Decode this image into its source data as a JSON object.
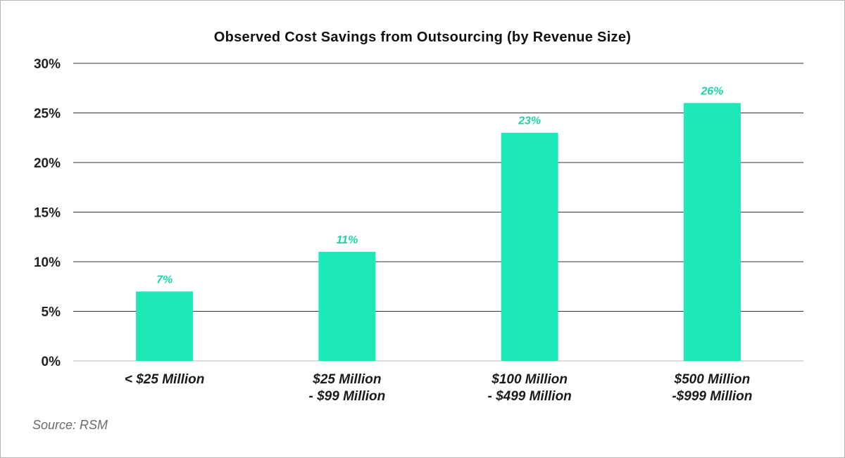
{
  "chart_data": {
    "type": "bar",
    "title": "Observed Cost Savings from Outsourcing (by Revenue Size)",
    "categories": [
      [
        "< $25 Million"
      ],
      [
        "$25 Million",
        "- $99 Million"
      ],
      [
        "$100 Million",
        "- $499 Million"
      ],
      [
        "$500 Million",
        "-$999 Million"
      ]
    ],
    "values": [
      7,
      11,
      23,
      26
    ],
    "data_labels": [
      "7%",
      "11%",
      "23%",
      "26%"
    ],
    "ylim": [
      0,
      30
    ],
    "yticks": [
      0,
      5,
      10,
      15,
      20,
      25,
      30
    ],
    "ytick_labels": [
      "0%",
      "5%",
      "10%",
      "15%",
      "20%",
      "25%",
      "30%"
    ],
    "grid": true,
    "bar_color": "#1de9b6",
    "label_color": "#1dd3a7"
  },
  "source": "Source: RSM"
}
